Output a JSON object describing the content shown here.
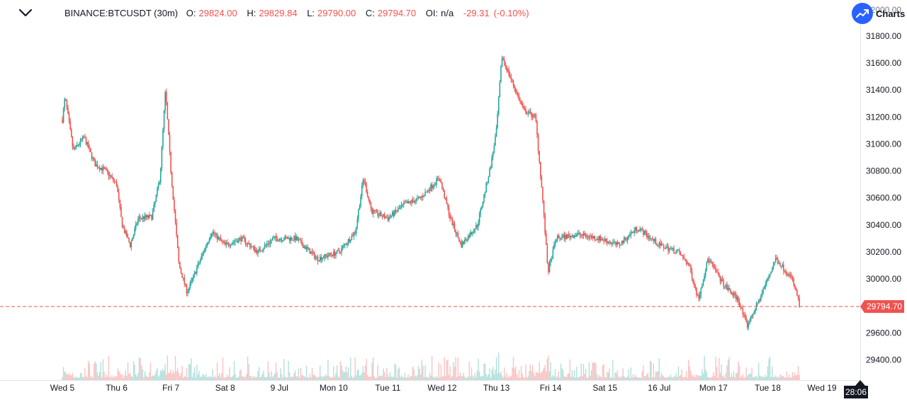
{
  "header": {
    "symbol": "BINANCE:BTCUSDT (30m)",
    "o_label": "O:",
    "o_value": "29824.00",
    "h_label": "H:",
    "h_value": "29829.84",
    "l_label": "L:",
    "l_value": "29790.00",
    "c_label": "C:",
    "c_value": "29794.70",
    "oi_label": "OI:",
    "oi_value": "n/a",
    "change": "-29.31",
    "change_pct": "(-0.10%)",
    "brand_label": "Charts",
    "menu_icon": "chevron-down-icon",
    "brand_icon": "trend-up-icon"
  },
  "colors": {
    "up": "#26a69a",
    "down": "#ef5350",
    "last_price": "#ef5350",
    "badge": "#2962ff"
  },
  "chart_data": {
    "type": "candlestick",
    "symbol": "BINANCE:BTCUSDT",
    "interval": "30m",
    "x_ticks": [
      "Wed 5",
      "Thu 6",
      "Fri 7",
      "Sat 8",
      "9 Jul",
      "Mon 10",
      "Tue 11",
      "Wed 12",
      "Thu 13",
      "Fri 14",
      "Sat 15",
      "16 Jul",
      "Mon 17",
      "Tue 18",
      "Wed 19"
    ],
    "y_ticks": [
      "31800.00",
      "31600.00",
      "31400.00",
      "31200.00",
      "31000.00",
      "30800.00",
      "30600.00",
      "30400.00",
      "30200.00",
      "30000.00",
      "29600.00",
      "29400.00"
    ],
    "y_top_partial": "32000.00",
    "ylim": [
      29330,
      32020
    ],
    "last_price": 29794.7,
    "last_price_label": "29794.70",
    "countdown": "28:06",
    "price_path": [
      {
        "d": 0.0,
        "p": 31180
      },
      {
        "d": 0.05,
        "p": 31350
      },
      {
        "d": 0.2,
        "p": 30950
      },
      {
        "d": 0.4,
        "p": 31050
      },
      {
        "d": 0.6,
        "p": 30850
      },
      {
        "d": 0.8,
        "p": 30800
      },
      {
        "d": 1.0,
        "p": 30700
      },
      {
        "d": 1.1,
        "p": 30400
      },
      {
        "d": 1.25,
        "p": 30250
      },
      {
        "d": 1.4,
        "p": 30450
      },
      {
        "d": 1.65,
        "p": 30460
      },
      {
        "d": 1.8,
        "p": 30750
      },
      {
        "d": 1.9,
        "p": 31400
      },
      {
        "d": 2.0,
        "p": 30800
      },
      {
        "d": 2.15,
        "p": 30100
      },
      {
        "d": 2.3,
        "p": 29900
      },
      {
        "d": 2.5,
        "p": 30100
      },
      {
        "d": 2.75,
        "p": 30350
      },
      {
        "d": 3.0,
        "p": 30250
      },
      {
        "d": 3.3,
        "p": 30300
      },
      {
        "d": 3.6,
        "p": 30200
      },
      {
        "d": 3.9,
        "p": 30300
      },
      {
        "d": 4.3,
        "p": 30300
      },
      {
        "d": 4.7,
        "p": 30150
      },
      {
        "d": 5.1,
        "p": 30200
      },
      {
        "d": 5.4,
        "p": 30350
      },
      {
        "d": 5.55,
        "p": 30750
      },
      {
        "d": 5.7,
        "p": 30500
      },
      {
        "d": 6.0,
        "p": 30450
      },
      {
        "d": 6.3,
        "p": 30550
      },
      {
        "d": 6.6,
        "p": 30600
      },
      {
        "d": 6.95,
        "p": 30750
      },
      {
        "d": 7.15,
        "p": 30450
      },
      {
        "d": 7.35,
        "p": 30250
      },
      {
        "d": 7.65,
        "p": 30400
      },
      {
        "d": 7.9,
        "p": 30850
      },
      {
        "d": 8.0,
        "p": 31100
      },
      {
        "d": 8.1,
        "p": 31650
      },
      {
        "d": 8.3,
        "p": 31450
      },
      {
        "d": 8.5,
        "p": 31250
      },
      {
        "d": 8.72,
        "p": 31200
      },
      {
        "d": 8.85,
        "p": 30600
      },
      {
        "d": 8.95,
        "p": 30050
      },
      {
        "d": 9.1,
        "p": 30300
      },
      {
        "d": 9.5,
        "p": 30330
      },
      {
        "d": 9.9,
        "p": 30300
      },
      {
        "d": 10.25,
        "p": 30250
      },
      {
        "d": 10.6,
        "p": 30380
      },
      {
        "d": 11.0,
        "p": 30250
      },
      {
        "d": 11.35,
        "p": 30200
      },
      {
        "d": 11.55,
        "p": 30100
      },
      {
        "d": 11.72,
        "p": 29850
      },
      {
        "d": 11.9,
        "p": 30150
      },
      {
        "d": 12.2,
        "p": 29950
      },
      {
        "d": 12.45,
        "p": 29850
      },
      {
        "d": 12.62,
        "p": 29650
      },
      {
        "d": 12.85,
        "p": 29850
      },
      {
        "d": 13.15,
        "p": 30150
      },
      {
        "d": 13.45,
        "p": 30000
      },
      {
        "d": 13.6,
        "p": 29795
      }
    ]
  }
}
